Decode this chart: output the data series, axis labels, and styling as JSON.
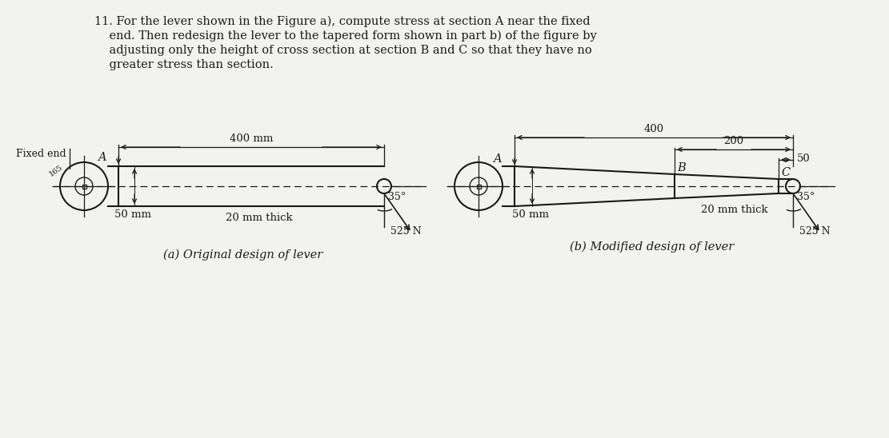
{
  "bg_color": "#f2f2ee",
  "text_color": "#1a1a1a",
  "fig_a_caption": "(a) Original design of lever",
  "fig_b_caption": "(b) Modified design of lever",
  "fixed_end_label": "Fixed end",
  "label_A": "A",
  "label_B": "B",
  "label_C": "C",
  "dim_400mm": "400 mm",
  "dim_400": "400",
  "dim_200": "200",
  "dim_50_right": "50",
  "dim_50mm": "50 mm",
  "thick_label": "20 mm thick",
  "angle_label": "35°",
  "force_label": "525 N",
  "label_165": "165"
}
